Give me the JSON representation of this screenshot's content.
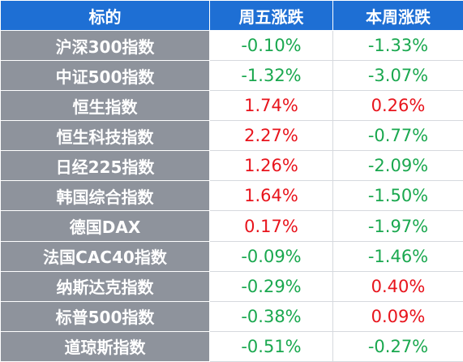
{
  "table": {
    "header": [
      "标的",
      "周五涨跌",
      "本周涨跌"
    ],
    "rows": [
      [
        "沪深300指数",
        "-0.10%",
        "-1.33%"
      ],
      [
        "中证500指数",
        "-1.32%",
        "-3.07%"
      ],
      [
        "恒生指数",
        "1.74%",
        "0.26%"
      ],
      [
        "恒生科技指数",
        "2.27%",
        "-0.77%"
      ],
      [
        "日经225指数",
        "1.26%",
        "-2.09%"
      ],
      [
        "韩国综合指数",
        "1.64%",
        "-1.50%"
      ],
      [
        "德国DAX",
        "0.17%",
        "-1.97%"
      ],
      [
        "法国CAC40指数",
        "-0.09%",
        "-1.46%"
      ],
      [
        "纳斯达克指数",
        "-0.29%",
        "0.40%"
      ],
      [
        "标普500指数",
        "-0.38%",
        "0.09%"
      ],
      [
        "道琼斯指数",
        "-0.51%",
        "-0.27%"
      ]
    ],
    "colors": {
      "header": "#1e6fd4",
      "label_column": "#8e939c",
      "up": "#e8141c",
      "down": "#1aa84f"
    }
  }
}
